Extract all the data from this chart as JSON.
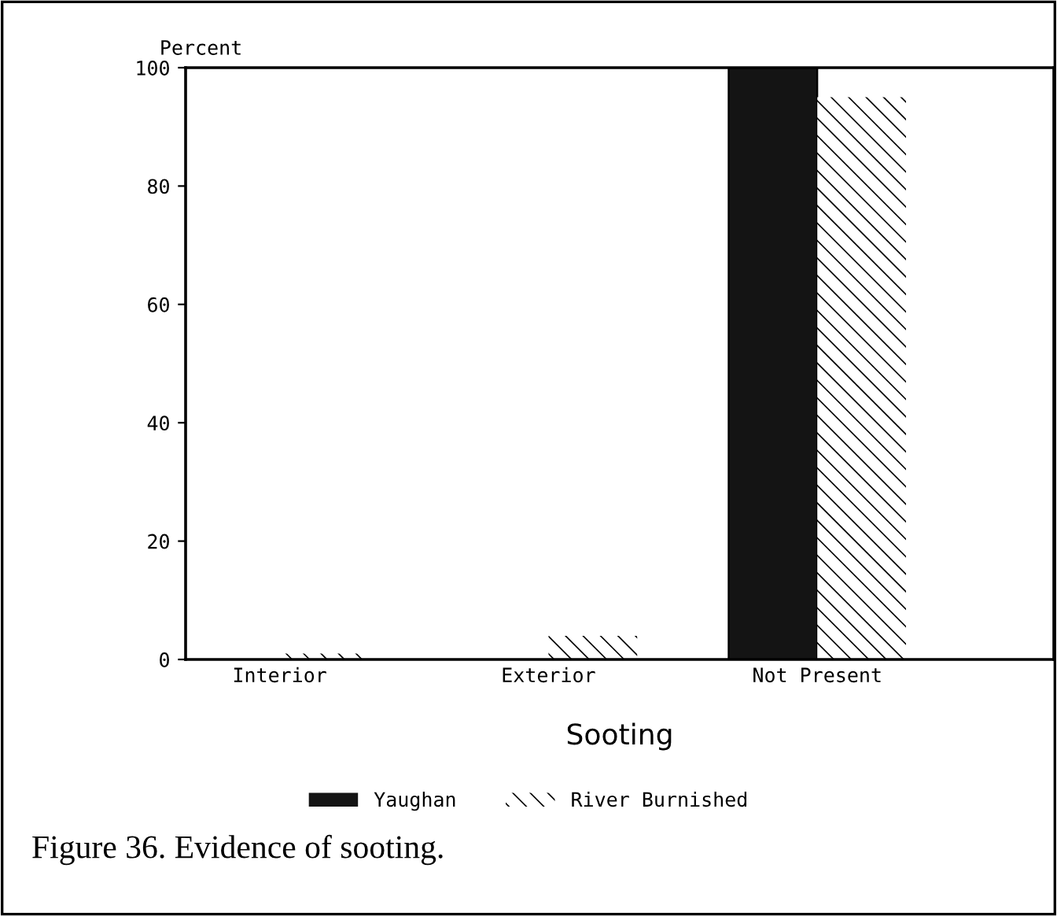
{
  "chart_data": {
    "type": "bar",
    "ylabel": "Percent",
    "xlabel": "Sooting",
    "categories": [
      "Interior",
      "Exterior",
      "Not Present"
    ],
    "series": [
      {
        "name": "Yaughan",
        "color": "#141414",
        "values": [
          0,
          0,
          100
        ]
      },
      {
        "name": "River Burnished",
        "color": "#ffffff",
        "values": [
          1,
          4,
          95
        ]
      }
    ],
    "ylim": [
      0,
      100
    ],
    "yticks": [
      0,
      20,
      40,
      60,
      80,
      100
    ],
    "grid": false,
    "legend": "bottom",
    "annotations": [
      "Figure 36. Evidence of sooting."
    ]
  }
}
